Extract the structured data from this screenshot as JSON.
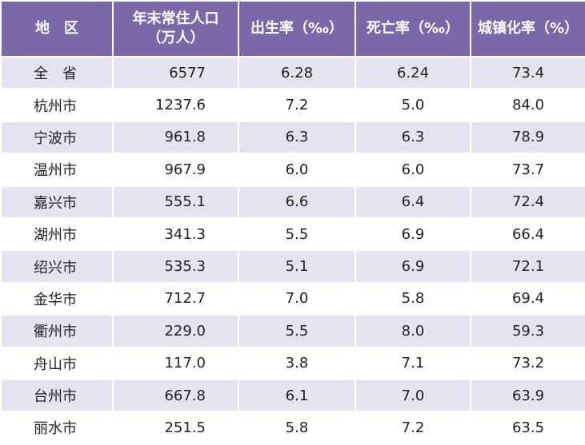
{
  "table": {
    "header": [
      "地　区",
      "年末常住人口\n（万人）",
      "出生率（‰）",
      "死亡率（‰）",
      "城镇化率（%）"
    ],
    "rows": [
      [
        "全　省",
        "6577",
        "6.28",
        "6.24",
        "73.4"
      ],
      [
        "杭州市",
        "1237.6",
        "7.2",
        "5.0",
        "84.0"
      ],
      [
        "宁波市",
        "961.8",
        "6.3",
        "6.3",
        "78.9"
      ],
      [
        "温州市",
        "967.9",
        "6.0",
        "6.0",
        "73.7"
      ],
      [
        "嘉兴市",
        "555.1",
        "6.6",
        "6.4",
        "72.4"
      ],
      [
        "湖州市",
        "341.3",
        "5.5",
        "6.9",
        "66.4"
      ],
      [
        "绍兴市",
        "535.3",
        "5.1",
        "6.9",
        "72.1"
      ],
      [
        "金华市",
        "712.7",
        "7.0",
        "5.8",
        "69.4"
      ],
      [
        "衢州市",
        "229.0",
        "5.5",
        "8.0",
        "59.3"
      ],
      [
        "舟山市",
        "117.0",
        "3.8",
        "7.1",
        "73.2"
      ],
      [
        "台州市",
        "667.8",
        "6.1",
        "7.0",
        "63.9"
      ],
      [
        "丽水市",
        "251.5",
        "5.8",
        "7.2",
        "63.5"
      ]
    ]
  }
}
